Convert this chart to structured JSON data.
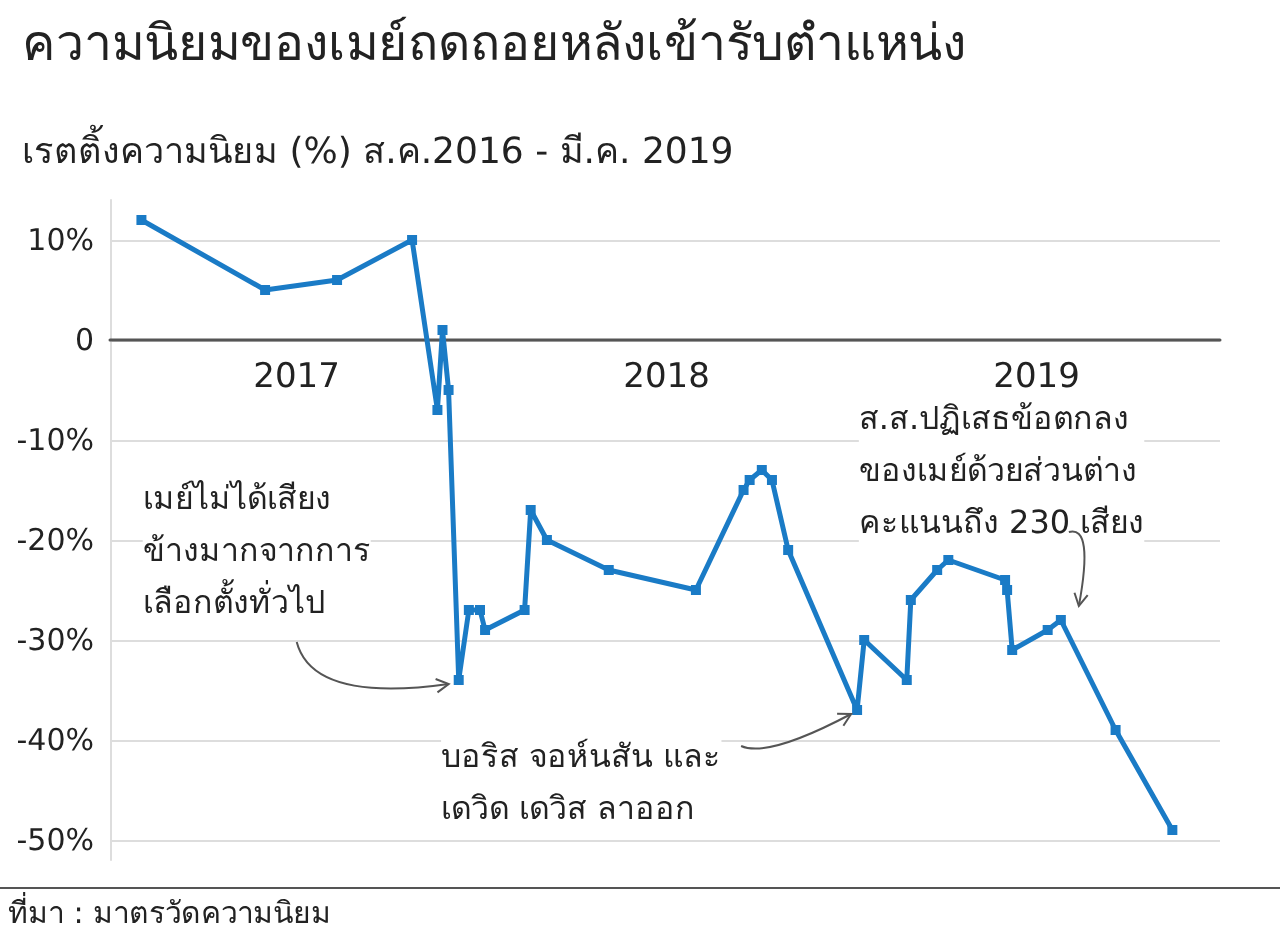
{
  "chart_data": {
    "type": "line",
    "title": "ความนิยมของเมย์ถดถอยหลังเข้ารับตำแหน่ง",
    "subtitle": "เรตติ้งความนิยม (%) ส.ค.2016 - มี.ค. 2019",
    "x": [
      "2016-08-01",
      "2016-12-01",
      "2017-02-10",
      "2017-04-25",
      "2017-05-20",
      "2017-05-25",
      "2017-05-31",
      "2017-06-10",
      "2017-06-20",
      "2017-07-01",
      "2017-07-06",
      "2017-08-14",
      "2017-08-20",
      "2017-09-05",
      "2017-11-05",
      "2018-01-30",
      "2018-03-18",
      "2018-03-24",
      "2018-04-05",
      "2018-04-15",
      "2018-05-01",
      "2018-07-08",
      "2018-07-15",
      "2018-08-26",
      "2018-08-30",
      "2018-09-25",
      "2018-10-06",
      "2018-12-01",
      "2018-12-03",
      "2018-12-08",
      "2019-01-12",
      "2019-01-25",
      "2019-03-20",
      "2019-05-15"
    ],
    "series": [
      {
        "color": "#1a7bc6",
        "values": [
          12,
          5,
          6,
          10,
          -7,
          1,
          -5,
          -34,
          -27,
          -27,
          -29,
          -27,
          -17,
          -20,
          -23,
          -25,
          -15,
          -14,
          -13,
          -14,
          -21,
          -37,
          -30,
          -34,
          -26,
          -23,
          -22,
          -24,
          -25,
          -31,
          -29,
          -28,
          -39,
          -49
        ]
      }
    ],
    "xlim": [
      "2016-07-01",
      "2019-07-01"
    ],
    "xticks": [
      {
        "value": "2017-01-01",
        "label": "2017"
      },
      {
        "value": "2018-01-01",
        "label": "2018"
      },
      {
        "value": "2019-01-01",
        "label": "2019"
      }
    ],
    "ylim": [
      -52,
      14
    ],
    "yticks": [
      {
        "value": 10,
        "label": "10%"
      },
      0,
      {
        "value": -10,
        "label": "-10%"
      },
      {
        "value": -20,
        "label": "-20%"
      },
      {
        "value": -30,
        "label": "-30%"
      },
      {
        "value": -40,
        "label": "-40%"
      },
      {
        "value": -50,
        "label": "-50%"
      }
    ],
    "grid": "y",
    "marker": "square",
    "line_style": "solid",
    "annotations": [
      {
        "text": "เมย์ไม่ได้เสียง\nข้างมากจากการ\nเลือกตั้งทั่วไป",
        "x": "2017-06-10",
        "y": -34
      },
      {
        "text": "บอริส จอห์นสัน และ\nเดวิด เดวิส ลาออก",
        "x": "2018-07-08",
        "y": -37
      },
      {
        "text": "ส.ส.ปฏิเสธข้อตกลง\nของเมย์ด้วยส่วนต่าง\nคะแนนถึง 230 เสียง",
        "x": "2019-01-25",
        "y": -28
      },
      "ที่มา : มาตรวัดความนิยม"
    ]
  }
}
